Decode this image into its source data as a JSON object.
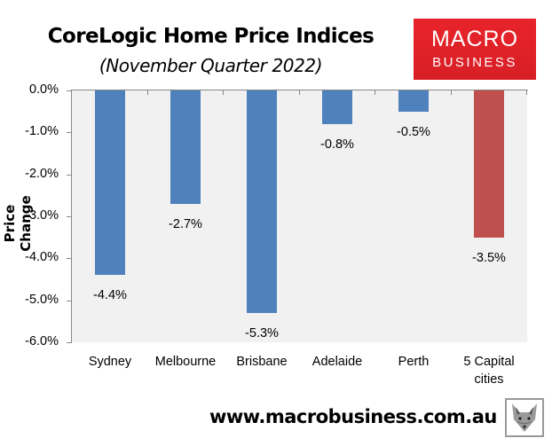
{
  "header": {
    "title": "CoreLogic Home Price Indices",
    "subtitle": "(November Quarter 2022)"
  },
  "logo": {
    "line1": "MACRO",
    "line2": "BUSINESS",
    "color": "#e8232a"
  },
  "footer": {
    "url": "www.macrobusiness.com.au"
  },
  "chart_data": {
    "type": "bar",
    "title": "CoreLogic Home Price Indices",
    "subtitle": "(November Quarter 2022)",
    "xlabel": "",
    "ylabel": "Price Change",
    "ylim": [
      -6.0,
      0.0
    ],
    "yticks": [
      "0.0%",
      "-1.0%",
      "-2.0%",
      "-3.0%",
      "-4.0%",
      "-5.0%",
      "-6.0%"
    ],
    "categories": [
      "Sydney",
      "Melbourne",
      "Brisbane",
      "Adelaide",
      "Perth",
      "5 Capital cities"
    ],
    "values": [
      -4.4,
      -2.7,
      -5.3,
      -0.8,
      -0.5,
      -3.5
    ],
    "data_labels": [
      "-4.4%",
      "-2.7%",
      "-5.3%",
      "-0.8%",
      "-0.5%",
      "-3.5%"
    ],
    "colors": [
      "#4f81bd",
      "#4f81bd",
      "#4f81bd",
      "#4f81bd",
      "#4f81bd",
      "#c0504d"
    ],
    "grid": false,
    "legend": "none",
    "plot_background": "#f1f1f1"
  },
  "xlabels": [
    "Sydney",
    "Melbourne",
    "Brisbane",
    "Adelaide",
    "Perth",
    "5 Capital\ncities"
  ]
}
